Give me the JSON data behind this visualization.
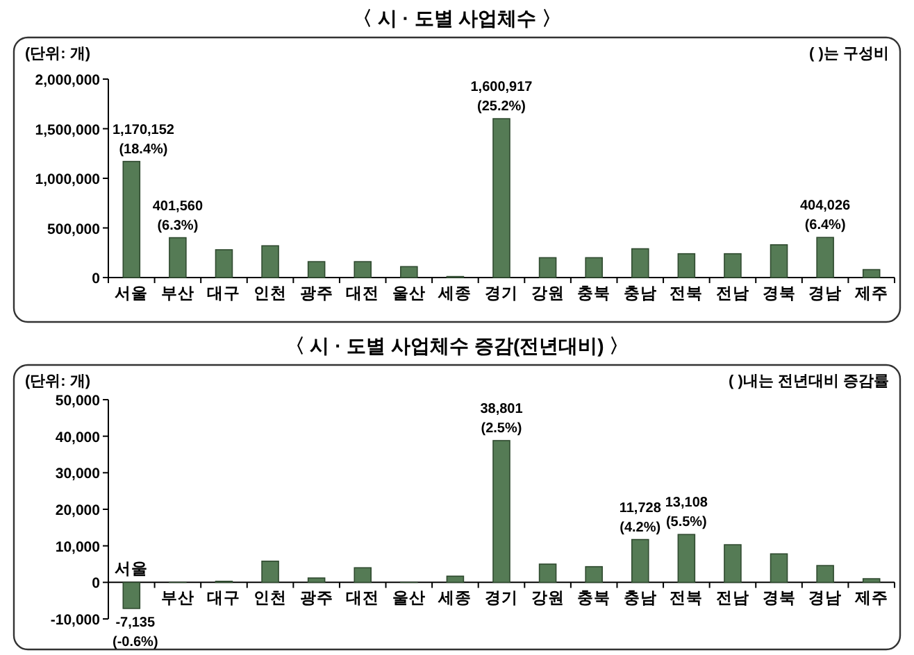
{
  "chart_data": [
    {
      "type": "bar",
      "title": "〈 시 · 도별 사업체수 〉",
      "annotations": [
        "(단위: 개)",
        "(      )는 구성비"
      ],
      "categories": [
        "서울",
        "부산",
        "대구",
        "인천",
        "광주",
        "대전",
        "울산",
        "세종",
        "경기",
        "강원",
        "충북",
        "충남",
        "전북",
        "전남",
        "경북",
        "경남",
        "제주"
      ],
      "values": [
        1170152,
        401560,
        280000,
        320000,
        160000,
        160000,
        110000,
        10000,
        1600917,
        200000,
        200000,
        290000,
        240000,
        240000,
        330000,
        404026,
        80000
      ],
      "value_labels": [
        "1,170,152 (18.4%)",
        "401,560 (6.3%)",
        null,
        null,
        null,
        null,
        null,
        null,
        "1,600,917 (25.2%)",
        null,
        null,
        null,
        null,
        null,
        null,
        "404,026 (6.4%)",
        null
      ],
      "color": "#557b55",
      "ylim": [
        0,
        2000000
      ],
      "yticks": [
        {
          "value": 0,
          "label": "0"
        },
        {
          "value": 500000,
          "label": "500,000"
        },
        {
          "value": 1000000,
          "label": "1,000,000"
        },
        {
          "value": 1500000,
          "label": "1,500,000"
        },
        {
          "value": 2000000,
          "label": "2,000,000"
        }
      ]
    },
    {
      "type": "bar",
      "title": "〈 시 · 도별 사업체수 증감(전년대비) 〉",
      "annotations": [
        "(단위: 개)",
        "(      )내는 전년대비 증감률"
      ],
      "categories": [
        "서울",
        "부산",
        "대구",
        "인천",
        "광주",
        "대전",
        "울산",
        "세종",
        "경기",
        "강원",
        "충북",
        "충남",
        "전북",
        "전남",
        "경북",
        "경남",
        "제주"
      ],
      "values": [
        -7135,
        0,
        300,
        5800,
        1200,
        4000,
        0,
        1700,
        38801,
        5000,
        4300,
        11728,
        13108,
        10300,
        7800,
        4600,
        1000
      ],
      "value_labels": [
        "-7,135 (-0.6%)",
        null,
        null,
        null,
        null,
        null,
        null,
        null,
        "38,801 (2.5%)",
        null,
        null,
        "11,728 (4.2%)",
        "13,108 (5.5%)",
        null,
        null,
        null,
        null
      ],
      "color": "#557b55",
      "ylim": [
        -10000,
        50000
      ],
      "yticks": [
        {
          "value": -10000,
          "label": "-10,000"
        },
        {
          "value": 0,
          "label": "0"
        },
        {
          "value": 10000,
          "label": "10,000"
        },
        {
          "value": 20000,
          "label": "20,000"
        },
        {
          "value": 30000,
          "label": "30,000"
        },
        {
          "value": 40000,
          "label": "40,000"
        },
        {
          "value": 50000,
          "label": "50,000"
        }
      ]
    }
  ]
}
